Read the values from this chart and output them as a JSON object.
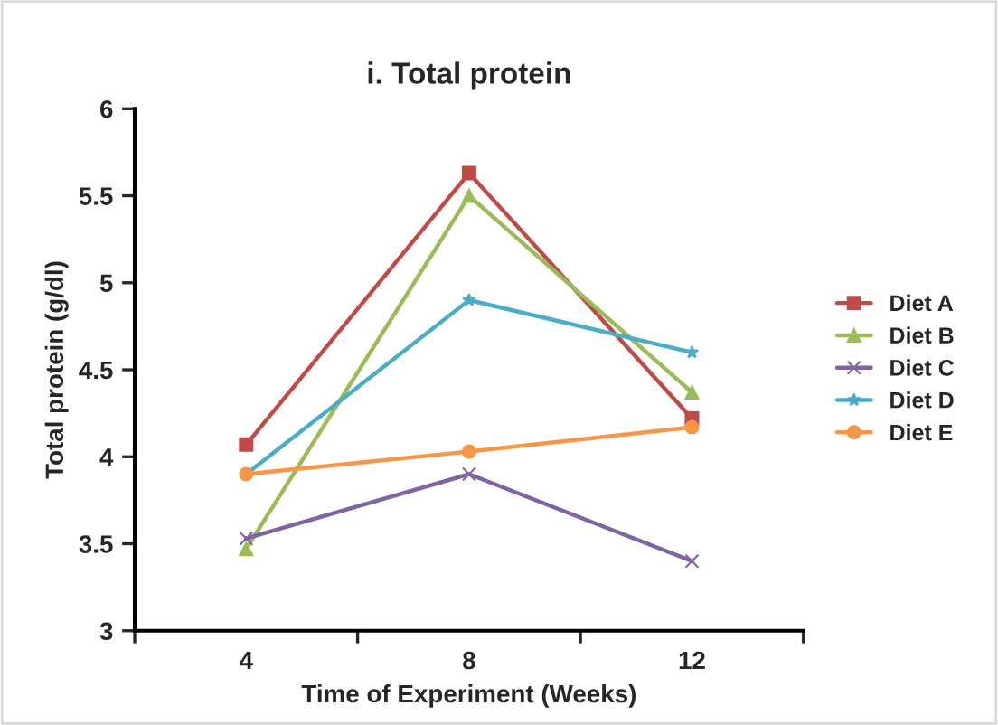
{
  "chart_data": {
    "type": "line",
    "title": "i. Total protein",
    "xlabel": "Time of Experiment (Weeks)",
    "ylabel": "Total protein (g/dl)",
    "categories": [
      "4",
      "8",
      "12"
    ],
    "series": [
      {
        "name": "Diet A",
        "color": "#be4b48",
        "marker": "square",
        "values": [
          4.07,
          5.63,
          4.22
        ]
      },
      {
        "name": "Diet B",
        "color": "#9bbb59",
        "marker": "triangle",
        "values": [
          3.47,
          5.5,
          4.37
        ]
      },
      {
        "name": "Diet C",
        "color": "#8064a2",
        "marker": "cross",
        "values": [
          3.53,
          3.9,
          3.4
        ]
      },
      {
        "name": "Diet D",
        "color": "#4bacc6",
        "marker": "star",
        "values": [
          3.9,
          4.9,
          4.6
        ]
      },
      {
        "name": "Diet E",
        "color": "#f79646",
        "marker": "circle",
        "values": [
          3.9,
          4.03,
          4.17
        ]
      }
    ],
    "ylim": [
      3,
      6
    ],
    "yticks": [
      3,
      3.5,
      4,
      4.5,
      5,
      5.5,
      6
    ],
    "grid": false,
    "legend": "right"
  }
}
